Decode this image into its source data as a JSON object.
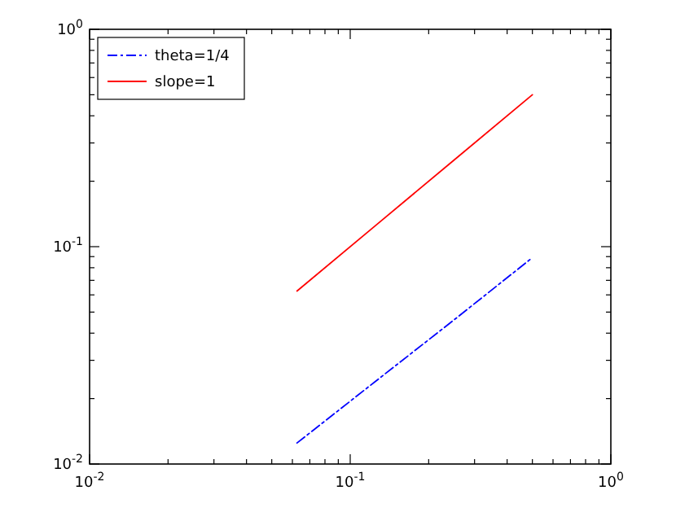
{
  "chart_data": {
    "type": "line",
    "log": "xy",
    "xlim": [
      0.01,
      1
    ],
    "ylim": [
      0.01,
      1
    ],
    "xticks": [
      {
        "value": 0.01,
        "label": "10$^{-2}$"
      },
      {
        "value": 0.02,
        "label": null
      },
      {
        "value": 0.03,
        "label": null
      },
      {
        "value": 0.04,
        "label": null
      },
      {
        "value": 0.05,
        "label": null
      },
      {
        "value": 0.06,
        "label": null
      },
      {
        "value": 0.07,
        "label": null
      },
      {
        "value": 0.08,
        "label": null
      },
      {
        "value": 0.09,
        "label": null
      },
      {
        "value": 0.1,
        "label": "10$^{-1}$"
      },
      {
        "value": 0.2,
        "label": null
      },
      {
        "value": 0.3,
        "label": null
      },
      {
        "value": 0.4,
        "label": null
      },
      {
        "value": 0.5,
        "label": null
      },
      {
        "value": 0.6,
        "label": null
      },
      {
        "value": 0.7,
        "label": null
      },
      {
        "value": 0.8,
        "label": null
      },
      {
        "value": 0.9,
        "label": null
      },
      {
        "value": 1,
        "label": "10$^{0}$"
      }
    ],
    "yticks": [
      {
        "value": 0.01,
        "label": "10$^{-2}$"
      },
      {
        "value": 0.02,
        "label": null
      },
      {
        "value": 0.03,
        "label": null
      },
      {
        "value": 0.04,
        "label": null
      },
      {
        "value": 0.05,
        "label": null
      },
      {
        "value": 0.06,
        "label": null
      },
      {
        "value": 0.07,
        "label": null
      },
      {
        "value": 0.08,
        "label": null
      },
      {
        "value": 0.09,
        "label": null
      },
      {
        "value": 0.1,
        "label": "10$^{-1}$"
      },
      {
        "value": 0.2,
        "label": null
      },
      {
        "value": 0.3,
        "label": null
      },
      {
        "value": 0.4,
        "label": null
      },
      {
        "value": 0.5,
        "label": null
      },
      {
        "value": 0.6,
        "label": null
      },
      {
        "value": 0.7,
        "label": null
      },
      {
        "value": 0.8,
        "label": null
      },
      {
        "value": 0.9,
        "label": null
      },
      {
        "value": 1,
        "label": "10$^{0}$"
      }
    ],
    "x": [
      0.0625,
      0.125,
      0.25,
      0.5
    ],
    "series": [
      {
        "name": "theta=1/4",
        "color": "#0000ff",
        "line_style": "dashdot",
        "values": [
          0.0125,
          0.024,
          0.046,
          0.089
        ]
      },
      {
        "name": "slope=1",
        "color": "#ff0000",
        "line_style": "solid",
        "values": [
          0.0625,
          0.125,
          0.25,
          0.5
        ]
      }
    ],
    "legend": "top left",
    "grid": false
  }
}
